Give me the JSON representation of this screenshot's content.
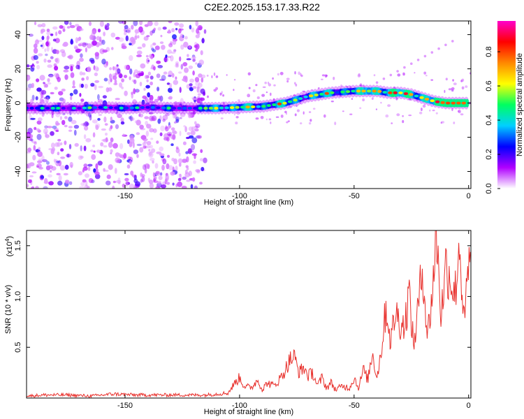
{
  "title": "C2E2.2025.153.17.33.R22",
  "chart_data": [
    {
      "type": "heatmap",
      "xlabel": "Height of straight line (km)",
      "ylabel": "Frequency (Hz)",
      "xlim": [
        -193,
        1
      ],
      "ylim": [
        -50,
        48
      ],
      "xticks": [
        "-150",
        "-100",
        "-50",
        "0"
      ],
      "xtick_values": [
        -150,
        -100,
        -50,
        0
      ],
      "yticks": [
        "40",
        "20",
        "0",
        "-20",
        "-40"
      ],
      "ytick_values": [
        40,
        20,
        0,
        -20,
        -40
      ],
      "colorbar": {
        "label": "Normalized spectral amplitude",
        "ticks": [
          "0.0",
          "0.2",
          "0.4",
          "0.6",
          "0.8"
        ],
        "tick_values": [
          0.0,
          0.2,
          0.4,
          0.6,
          0.8
        ],
        "range": [
          0,
          0.98
        ],
        "colors": [
          "#ffffff",
          "#b000ff",
          "#0000ff",
          "#00d0ff",
          "#00ff60",
          "#ffff00",
          "#ff8800",
          "#ff0000",
          "#ff00cc"
        ]
      },
      "ridge": {
        "x": [
          -193,
          -180,
          -170,
          -160,
          -150,
          -140,
          -130,
          -120,
          -110,
          -100,
          -90,
          -80,
          -70,
          -60,
          -50,
          -40,
          -35,
          -30,
          -25,
          -20,
          -15,
          -10,
          -5,
          0
        ],
        "y": [
          -3,
          -3,
          -3,
          -2.5,
          -3,
          -2.5,
          -3,
          -3,
          -3,
          -2.5,
          -2,
          0,
          4,
          6,
          7,
          7,
          6,
          6,
          5,
          3,
          1,
          0,
          0,
          0
        ]
      },
      "noise_region_x": [
        -193,
        -115
      ]
    },
    {
      "type": "line",
      "xlabel": "Height of straight line (km)",
      "ylabel": "SNR (10 * v/v)",
      "multiplier": "(x10",
      "multiplier_exp": "4",
      "xlim": [
        -193,
        1
      ],
      "ylim": [
        0,
        1.65
      ],
      "xticks": [
        "-150",
        "-100",
        "-50",
        "0"
      ],
      "xtick_values": [
        -150,
        -100,
        -50,
        0
      ],
      "yticks": [
        "0.5",
        "1.0",
        "1.5"
      ],
      "ytick_values": [
        0.5,
        1.0,
        1.5
      ],
      "color": "#e8302c",
      "series": [
        {
          "x": [
            -193,
            -185,
            -175,
            -165,
            -155,
            -145,
            -135,
            -125,
            -115,
            -110,
            -105,
            -102,
            -100,
            -98,
            -95,
            -92,
            -90,
            -88,
            -85,
            -82,
            -80,
            -78,
            -76,
            -74,
            -72,
            -70,
            -68,
            -66,
            -64,
            -62,
            -60,
            -58,
            -55,
            -52,
            -50,
            -48,
            -46,
            -44,
            -42,
            -40,
            -38,
            -36,
            -34,
            -32,
            -30,
            -28,
            -26,
            -24,
            -22,
            -20,
            -18,
            -16,
            -14,
            -12,
            -10,
            -8,
            -6,
            -4,
            -2,
            0,
            1
          ],
          "y": [
            0.02,
            0.03,
            0.03,
            0.02,
            0.04,
            0.03,
            0.03,
            0.03,
            0.03,
            0.04,
            0.05,
            0.15,
            0.2,
            0.12,
            0.1,
            0.18,
            0.08,
            0.15,
            0.12,
            0.2,
            0.28,
            0.38,
            0.4,
            0.25,
            0.3,
            0.22,
            0.25,
            0.12,
            0.2,
            0.1,
            0.15,
            0.08,
            0.12,
            0.1,
            0.2,
            0.1,
            0.28,
            0.18,
            0.45,
            0.2,
            0.5,
            0.9,
            0.55,
            0.85,
            0.75,
            0.7,
            1.05,
            0.5,
            0.9,
            1.3,
            0.6,
            1.0,
            1.65,
            0.8,
            1.3,
            1.2,
            1.0,
            1.55,
            0.7,
            1.3,
            1.28
          ]
        }
      ]
    }
  ]
}
